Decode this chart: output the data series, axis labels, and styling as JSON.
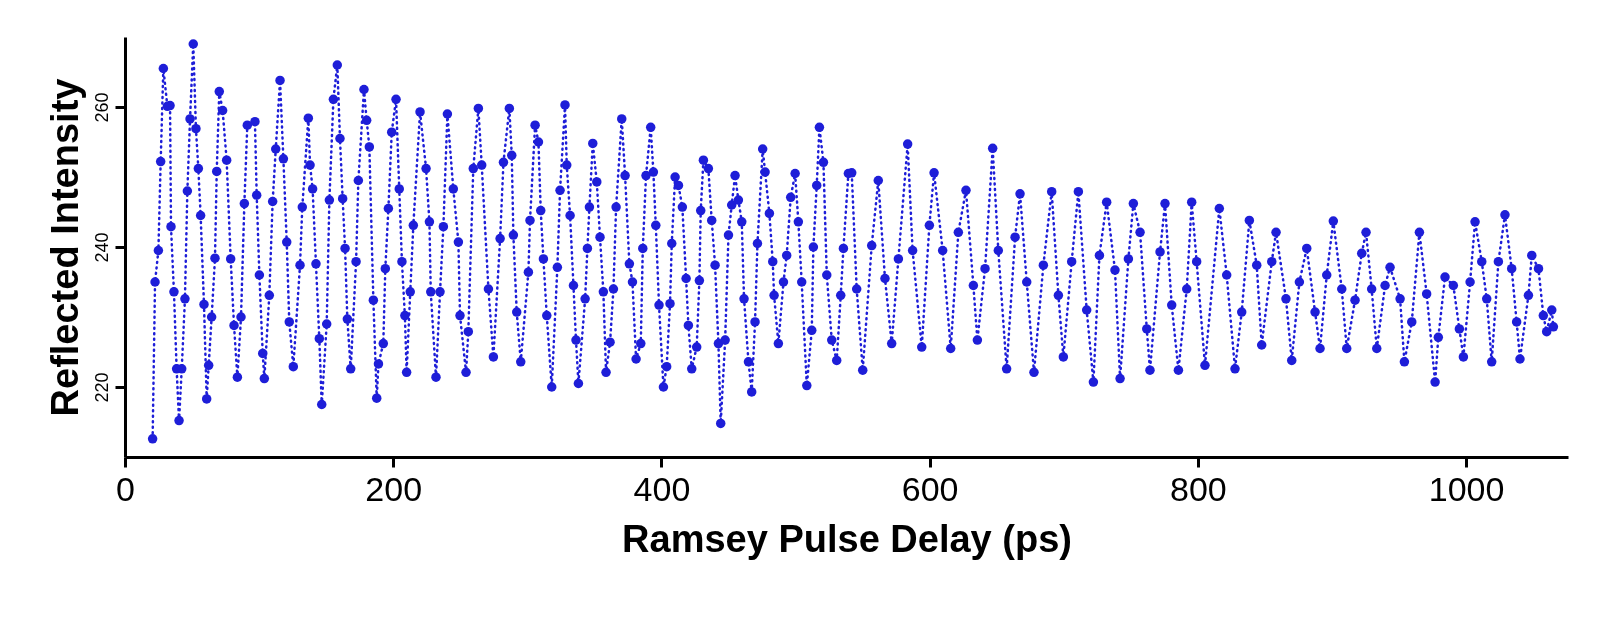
{
  "chart_data": {
    "type": "line",
    "xlabel": "Ramsey Pulse Delay (ps)",
    "ylabel": "Reflected Intensity",
    "xlim": [
      0,
      1076
    ],
    "ylim": [
      210,
      270
    ],
    "xticks": [
      0,
      200,
      400,
      600,
      800,
      1000
    ],
    "yticks": [
      220,
      240,
      260
    ],
    "grid": false,
    "marker": "circle",
    "line_style": "dotted",
    "series": [
      {
        "color": "#1e1ed8",
        "x": [
          20.6,
          22.4,
          24.9,
          26.6,
          28.6,
          31.6,
          33.6,
          34.3,
          36.5,
          38.5,
          40.3,
          42.3,
          44.7,
          46.5,
          48.5,
          50.9,
          52.9,
          54.7,
          56.4,
          58.9,
          60.9,
          62.4,
          64.6,
          67.1,
          68.4,
          70.3,
          72.8,
          75.8,
          78.8,
          81.3,
          83.8,
          86.5,
          89,
          91.2,
          96.9,
          98.2,
          100.2,
          102.7,
          103.9,
          107.6,
          110.1,
          112.4,
          115.6,
          118.1,
          120.6,
          122.5,
          125.5,
          130.5,
          132.2,
          136.7,
          138,
          139.9,
          142.4,
          144.9,
          146.7,
          150.4,
          152.4,
          155.4,
          158.3,
          160.3,
          162.3,
          164.1,
          165.8,
          168.3,
          172.3,
          174,
          178.2,
          180.2,
          182.2,
          185.2,
          187.7,
          189,
          192.6,
          194.1,
          196.4,
          198.9,
          202.1,
          204.5,
          206.5,
          208.7,
          210,
          212.7,
          215,
          220,
          224.5,
          227,
          228,
          231.9,
          234.9,
          237.4,
          240.4,
          244.8,
          248.6,
          249.8,
          254.3,
          256,
          259.7,
          263.5,
          266,
          271,
          274.7,
          279.7,
          282.2,
          286.6,
          288.4,
          289.6,
          292.1,
          295.1,
          300.8,
          302,
          305.8,
          308.3,
          310,
          312,
          314.5,
          318.2,
          322.4,
          324.4,
          328.1,
          329.4,
          331.9,
          334.4,
          336.3,
          338.1,
          343.1,
          344.8,
          346.3,
          348.8,
          351.8,
          354.2,
          356.7,
          358.7,
          361.7,
          364.2,
          366.2,
          370.4,
          372.9,
          376.1,
          378.4,
          381.1,
          384.6,
          386.1,
          388.5,
          392,
          394,
          395.8,
          398.2,
          401.5,
          403.9,
          406.4,
          407.7,
          410.2,
          412.7,
          415.6,
          418.4,
          420.1,
          422.6,
          426.3,
          428.3,
          429.3,
          431.3,
          435,
          437.5,
          440,
          442.5,
          444.2,
          447.5,
          450,
          452.4,
          454.9,
          457.4,
          459.9,
          461.6,
          464.9,
          467.3,
          469.8,
          471.6,
          475.5,
          477.3,
          480.5,
          483,
          484,
          487.2,
          491,
          493.4,
          496.4,
          499.7,
          502.1,
          504.6,
          508.4,
          512.1,
          513.3,
          515.8,
          517.8,
          520.8,
          523.3,
          527,
          530.7,
          533.7,
          535.7,
          539.4,
          541.9,
          545.6,
          550.1,
          556.8,
          561.7,
          566.7,
          571.7,
          576.7,
          583.6,
          587.3,
          594.1,
          599.8,
          603.3,
          609.7,
          615.7,
          621.4,
          627.1,
          632.6,
          635.6,
          641.3,
          647,
          651.2,
          657.4,
          663.7,
          667.4,
          672.4,
          677.8,
          684.8,
          691,
          696,
          699.7,
          705.9,
          710.9,
          717.1,
          722.1,
          726.6,
          732,
          738.2,
          742,
          748.2,
          751.9,
          756.9,
          761.9,
          764.3,
          771.8,
          775.5,
          780.5,
          785.5,
          791.7,
          795.4,
          799.1,
          805.3,
          816,
          821.5,
          827.7,
          832.7,
          838.4,
          843.9,
          847.6,
          855.1,
          858.3,
          865.7,
          870,
          875.7,
          881.2,
          887.4,
          891.1,
          896.1,
          901,
          907.3,
          911,
          917.2,
          922.2,
          925.4,
          929.6,
          933.4,
          939.6,
          943.3,
          950.8,
          954,
          959.5,
          965.2,
          970.6,
          976.9,
          979.3,
          984.3,
          990.5,
          995,
          998,
          1003,
          1006.7,
          1011.7,
          1015.4,
          1019.1,
          1024.1,
          1029,
          1034,
          1037.7,
          1040.2,
          1046.5,
          1049,
          1054,
          1057.6,
          1060.1,
          1063.9,
          1065.1
        ],
        "values": [
          212.6,
          235,
          239.5,
          252.2,
          265.5,
          260.1,
          260.2,
          242.9,
          233.6,
          222.6,
          215.2,
          222.6,
          232.6,
          248,
          258.3,
          269,
          256.9,
          251.2,
          244.5,
          231.8,
          218.3,
          223.1,
          230,
          238.4,
          250.8,
          262.2,
          259.5,
          252.4,
          238.3,
          228.8,
          221.4,
          230,
          246.2,
          257.4,
          257.9,
          247.4,
          236,
          224.8,
          221.2,
          233.1,
          246.5,
          254,
          263.8,
          252.6,
          240.7,
          229.3,
          222.9,
          237.4,
          245.7,
          258.4,
          251.7,
          248.3,
          237.6,
          226.9,
          217.5,
          229,
          246.7,
          261.1,
          266,
          255.5,
          246.9,
          239.8,
          229.7,
          222.6,
          237.9,
          249.5,
          262.5,
          258.1,
          254.3,
          232.4,
          218.4,
          223.3,
          226.2,
          236.9,
          245.5,
          256.4,
          261.1,
          248.3,
          237.9,
          230.2,
          222.1,
          233.6,
          243.1,
          259.3,
          251.2,
          243.6,
          233.6,
          221.4,
          233.6,
          242.9,
          259,
          248.3,
          240.7,
          230.2,
          222.1,
          227.9,
          251.2,
          259.8,
          251.7,
          234,
          224.3,
          241.2,
          252.1,
          259.8,
          253.1,
          241.7,
          230.7,
          223.6,
          236.4,
          243.8,
          257.4,
          255,
          245.2,
          238.3,
          230.2,
          220,
          237.1,
          248.1,
          260.3,
          251.7,
          244.5,
          234.5,
          226.7,
          220.5,
          232.6,
          239.8,
          245.7,
          254.8,
          249.3,
          241.4,
          233.6,
          222.1,
          226.4,
          234,
          245.7,
          258.3,
          250.2,
          237.6,
          235,
          224,
          226.2,
          239.8,
          250.2,
          257.1,
          250.7,
          243.1,
          231.7,
          220,
          222.9,
          231.9,
          240.5,
          250,
          248.8,
          245.7,
          235.5,
          228.8,
          222.6,
          225.7,
          235.2,
          245.2,
          252.4,
          251.2,
          243.8,
          237.4,
          226.2,
          214.8,
          226.7,
          241.7,
          246,
          250.2,
          246.7,
          243.6,
          232.6,
          223.6,
          219.3,
          229.3,
          240.5,
          254,
          250.7,
          244.8,
          237.9,
          233.1,
          226.2,
          235,
          238.8,
          247.1,
          250.5,
          243.6,
          235,
          220.2,
          228.1,
          240,
          248.8,
          257.1,
          252.1,
          236,
          226.7,
          223.8,
          233.1,
          239.8,
          250.5,
          250.6,
          234,
          222.4,
          240.2,
          249.5,
          235.5,
          226.2,
          238.3,
          254.7,
          239.5,
          225.7,
          243.1,
          250.6,
          239.5,
          225.5,
          242.1,
          248.1,
          234.5,
          226.7,
          236.9,
          254.1,
          239.5,
          222.6,
          241.4,
          247.6,
          235,
          222.1,
          237.4,
          247.9,
          233.1,
          224.3,
          237.9,
          247.9,
          231,
          220.7,
          238.8,
          246.4,
          236.7,
          221.2,
          238.3,
          246.2,
          242.1,
          228.3,
          222.4,
          239.3,
          246.2,
          231.7,
          222.4,
          234,
          246.4,
          237.9,
          223.1,
          245.5,
          236,
          222.6,
          230.7,
          243.8,
          237.4,
          226,
          237.9,
          242.1,
          232.6,
          223.8,
          235,
          239.8,
          230.7,
          225.5,
          236,
          243.7,
          234,
          225.5,
          232.4,
          239.1,
          242.1,
          234,
          225.5,
          234.5,
          237.1,
          232.6,
          223.6,
          229.3,
          242.1,
          233.3,
          220.7,
          227.1,
          235.7,
          234.5,
          228.3,
          224.3,
          235,
          243.6,
          237.9,
          232.6,
          223.6,
          237.9,
          244.6,
          236.9,
          229.3,
          224,
          233.1,
          238.8,
          236.9,
          230.2,
          227.9,
          231,
          228.6
        ]
      }
    ]
  }
}
